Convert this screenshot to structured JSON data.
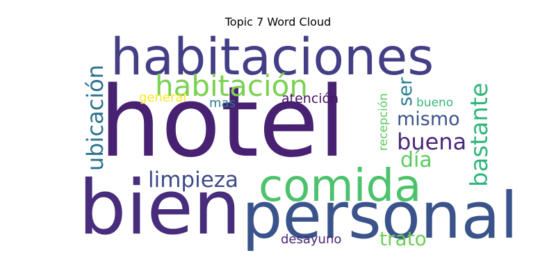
{
  "title": "Topic 7 Word Cloud",
  "words": [
    {
      "text": "hotel",
      "color": "#482172",
      "orientation": "horizontal"
    },
    {
      "text": "bien",
      "color": "#472d7b",
      "orientation": "horizontal"
    },
    {
      "text": "personal",
      "color": "#3a538b",
      "orientation": "horizontal"
    },
    {
      "text": "habitaciones",
      "color": "#433e85",
      "orientation": "horizontal"
    },
    {
      "text": "comida",
      "color": "#4cc26c",
      "orientation": "horizontal"
    },
    {
      "text": "habitación",
      "color": "#7ad151",
      "orientation": "horizontal"
    },
    {
      "text": "ubicación",
      "color": "#2c728e",
      "orientation": "vertical"
    },
    {
      "text": "bastante",
      "color": "#31b57b",
      "orientation": "vertical"
    },
    {
      "text": "limpieza",
      "color": "#3e4989",
      "orientation": "horizontal"
    },
    {
      "text": "buena",
      "color": "#482878",
      "orientation": "horizontal"
    },
    {
      "text": "mismo",
      "color": "#3b528b",
      "orientation": "horizontal"
    },
    {
      "text": "día",
      "color": "#5ec962",
      "orientation": "horizontal"
    },
    {
      "text": "ser",
      "color": "#287d8e",
      "orientation": "vertical"
    },
    {
      "text": "trato",
      "color": "#6ece58",
      "orientation": "horizontal"
    },
    {
      "text": "atención",
      "color": "#471164",
      "orientation": "horizontal"
    },
    {
      "text": "general",
      "color": "#fde725",
      "orientation": "horizontal"
    },
    {
      "text": "mas",
      "color": "#2a788e",
      "orientation": "horizontal"
    },
    {
      "text": "recepción",
      "color": "#5ec962",
      "orientation": "vertical"
    },
    {
      "text": "bueno",
      "color": "#35b779",
      "orientation": "horizontal"
    },
    {
      "text": "desayuno",
      "color": "#482475",
      "orientation": "horizontal"
    }
  ]
}
